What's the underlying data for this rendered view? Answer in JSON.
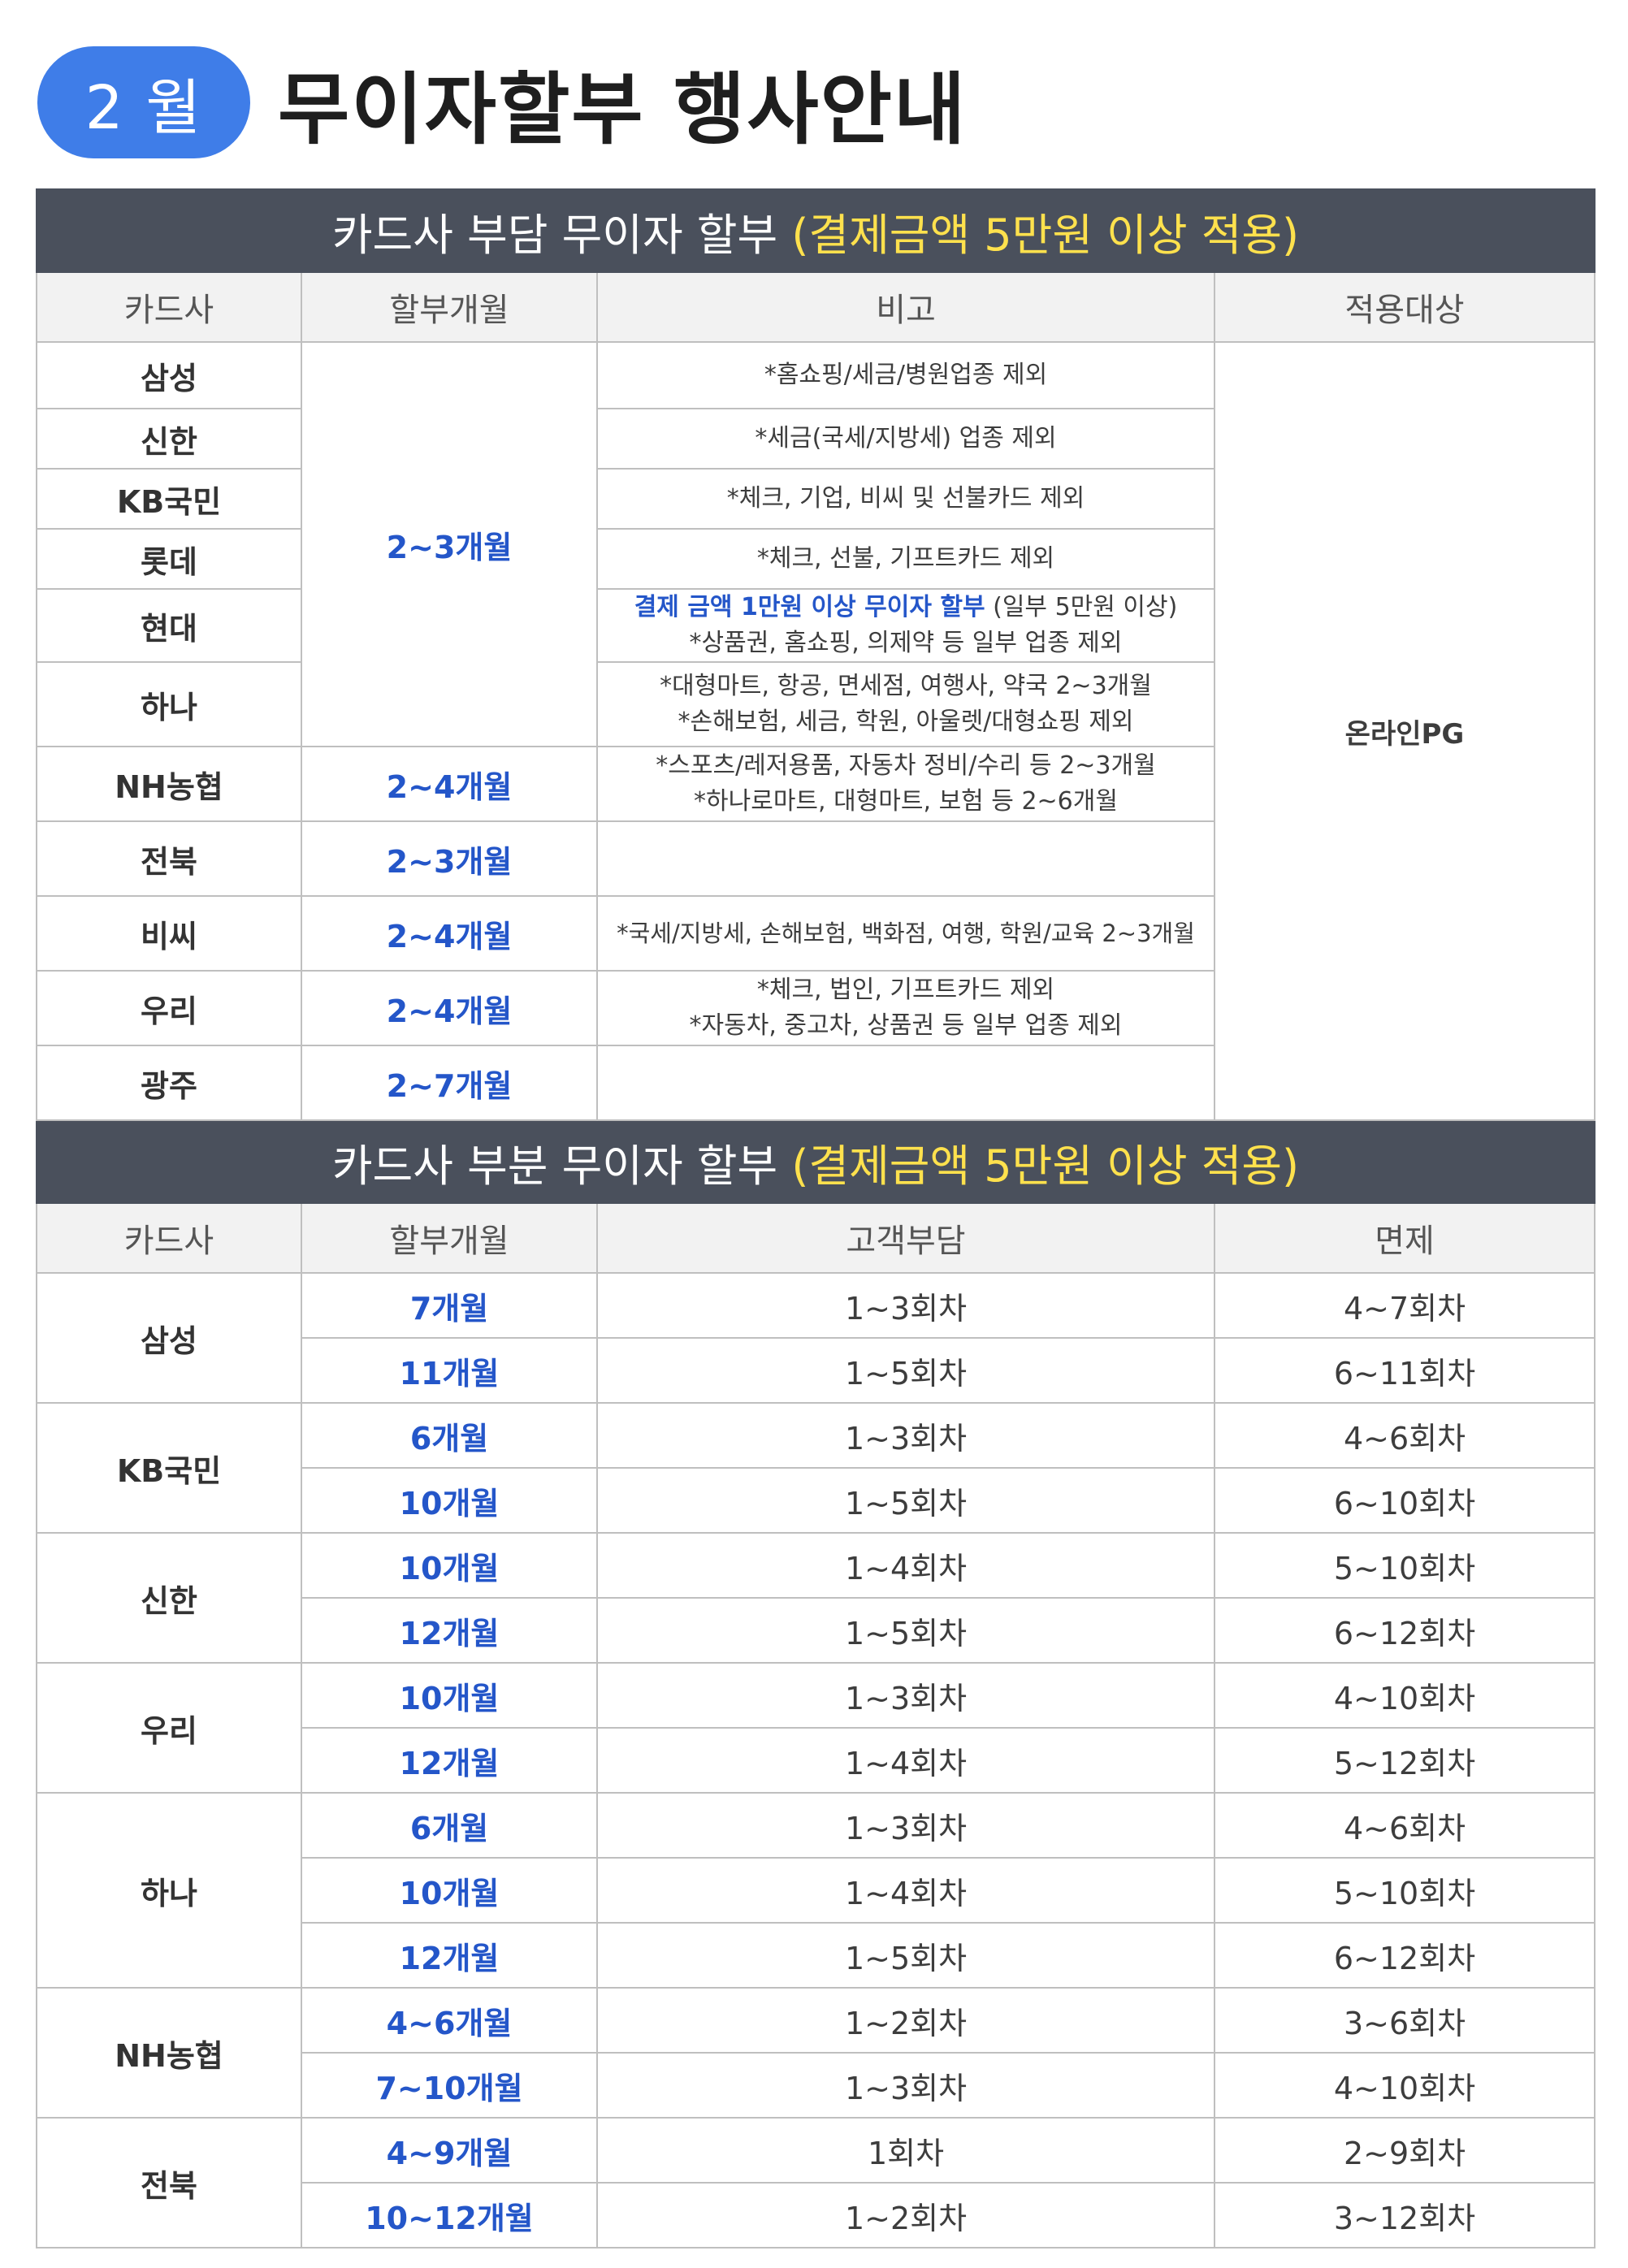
{
  "header": {
    "month_label": "2 월",
    "title": "무이자할부 행사안내"
  },
  "section1": {
    "title_main": "카드사 부담 무이자 할부 ",
    "title_highlight": "(결제금액 5만원 이상 적용)",
    "columns": [
      "카드사",
      "할부개월",
      "비고",
      "적용대상"
    ],
    "target": "온라인PG",
    "rows": [
      {
        "card": "삼성",
        "note1": "*홈쇼핑/세금/병원업종 제외"
      },
      {
        "card": "신한",
        "note1": "*세금(국세/지방세) 업종 제외"
      },
      {
        "card": "KB국민",
        "note1": "*체크, 기업, 비씨 및 선불카드 제외"
      },
      {
        "card": "롯데",
        "note1": "*체크, 선불, 기프트카드 제외"
      },
      {
        "card": "현대",
        "note_blue": "결제 금액 1만원 이상 무이자 할부",
        "note_tail": " (일부 5만원 이상)",
        "note2": "*상품권, 홈쇼핑, 의제약 등 일부 업종 제외"
      },
      {
        "card": "하나",
        "note1": "*대형마트, 항공, 면세점, 여행사, 약국 2~3개월",
        "note2": "*손해보험, 세금, 학원, 아울렛/대형쇼핑 제외"
      },
      {
        "card": "NH농협",
        "months": "2~4개월",
        "note1": "*스포츠/레저용품, 자동차 정비/수리 등 2~3개월",
        "note2": "*하나로마트, 대형마트, 보험 등 2~6개월"
      },
      {
        "card": "전북",
        "months": "2~3개월",
        "note1": ""
      },
      {
        "card": "비씨",
        "months": "2~4개월",
        "note1": "*국세/지방세, 손해보험, 백화점, 여행, 학원/교육 2~3개월"
      },
      {
        "card": "우리",
        "months": "2~4개월",
        "note1": "*체크, 법인, 기프트카드 제외",
        "note2": "*자동차, 중고차, 상품권 등 일부 업종 제외"
      },
      {
        "card": "광주",
        "months": "2~7개월",
        "note1": ""
      }
    ],
    "merged_months": "2~3개월"
  },
  "section2": {
    "title_main": "카드사 부분 무이자 할부 ",
    "title_highlight": "(결제금액 5만원 이상 적용)",
    "columns": [
      "카드사",
      "할부개월",
      "고객부담",
      "면제"
    ],
    "groups": [
      {
        "card": "삼성",
        "rows": [
          {
            "months": "7개월",
            "customer": "1~3회차",
            "exempt": "4~7회차"
          },
          {
            "months": "11개월",
            "customer": "1~5회차",
            "exempt": "6~11회차"
          }
        ]
      },
      {
        "card": "KB국민",
        "rows": [
          {
            "months": "6개월",
            "customer": "1~3회차",
            "exempt": "4~6회차"
          },
          {
            "months": "10개월",
            "customer": "1~5회차",
            "exempt": "6~10회차"
          }
        ]
      },
      {
        "card": "신한",
        "rows": [
          {
            "months": "10개월",
            "customer": "1~4회차",
            "exempt": "5~10회차"
          },
          {
            "months": "12개월",
            "customer": "1~5회차",
            "exempt": "6~12회차"
          }
        ]
      },
      {
        "card": "우리",
        "rows": [
          {
            "months": "10개월",
            "customer": "1~3회차",
            "exempt": "4~10회차"
          },
          {
            "months": "12개월",
            "customer": "1~4회차",
            "exempt": "5~12회차"
          }
        ]
      },
      {
        "card": "하나",
        "rows": [
          {
            "months": "6개월",
            "customer": "1~3회차",
            "exempt": "4~6회차"
          },
          {
            "months": "10개월",
            "customer": "1~4회차",
            "exempt": "5~10회차"
          },
          {
            "months": "12개월",
            "customer": "1~5회차",
            "exempt": "6~12회차"
          }
        ]
      },
      {
        "card": "NH농협",
        "rows": [
          {
            "months": "4~6개월",
            "customer": "1~2회차",
            "exempt": "3~6회차"
          },
          {
            "months": "7~10개월",
            "customer": "1~3회차",
            "exempt": "4~10회차"
          }
        ]
      },
      {
        "card": "전북",
        "rows": [
          {
            "months": "4~9개월",
            "customer": "1회차",
            "exempt": "2~9회차"
          },
          {
            "months": "10~12개월",
            "customer": "1~2회차",
            "exempt": "3~12회차"
          }
        ]
      }
    ]
  }
}
